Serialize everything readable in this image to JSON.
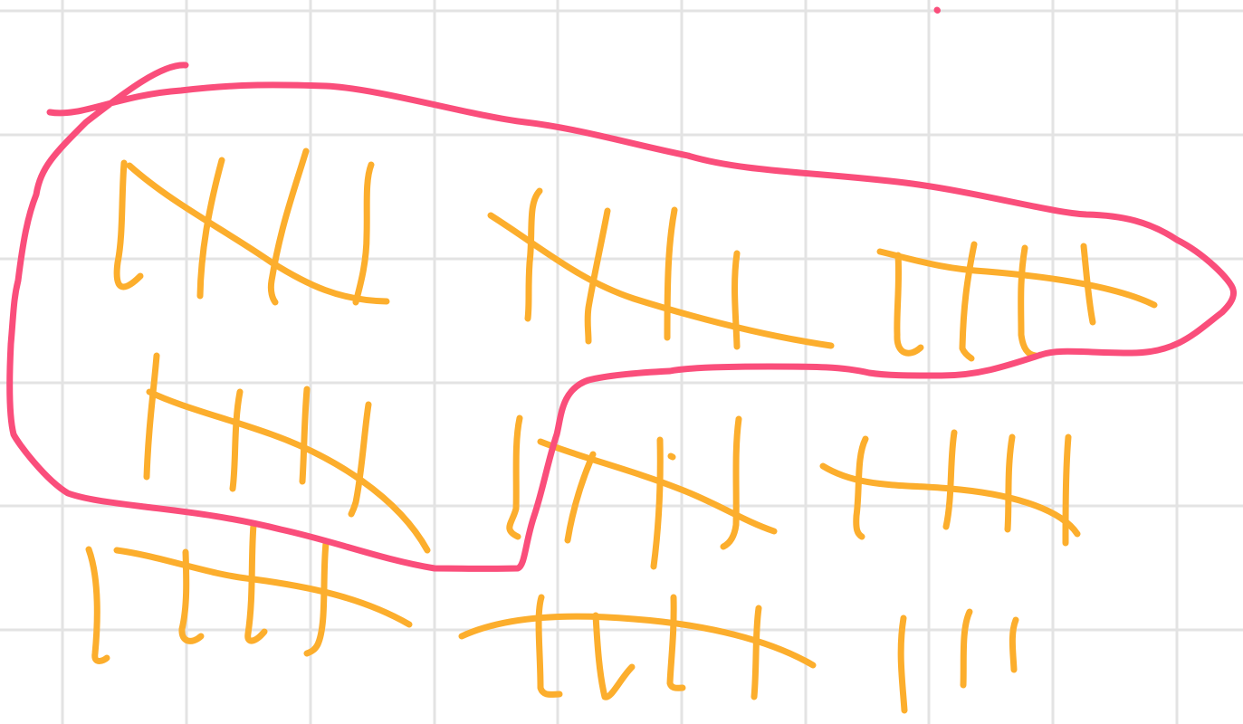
{
  "canvas": {
    "background": "#ffffff",
    "grid_color": "#e3e3e3",
    "grid": true
  },
  "colors": {
    "tally": "#fcae2d",
    "loop": "#fa4e7b"
  },
  "diagram": {
    "tally_groups": [
      {
        "id": "group-1",
        "count": 5,
        "circled": true
      },
      {
        "id": "group-2",
        "count": 5,
        "circled": true
      },
      {
        "id": "group-3",
        "count": 5,
        "circled": true
      },
      {
        "id": "group-4",
        "count": 5,
        "circled": true
      },
      {
        "id": "group-5",
        "count": 5,
        "circled": false
      },
      {
        "id": "group-6",
        "count": 5,
        "circled": false
      },
      {
        "id": "group-7",
        "count": 5,
        "circled": false
      },
      {
        "id": "group-8",
        "count": 5,
        "circled": false
      },
      {
        "id": "group-9",
        "count": 3,
        "circled": false
      }
    ],
    "circled_total": 20,
    "uncircled_total": 23
  }
}
